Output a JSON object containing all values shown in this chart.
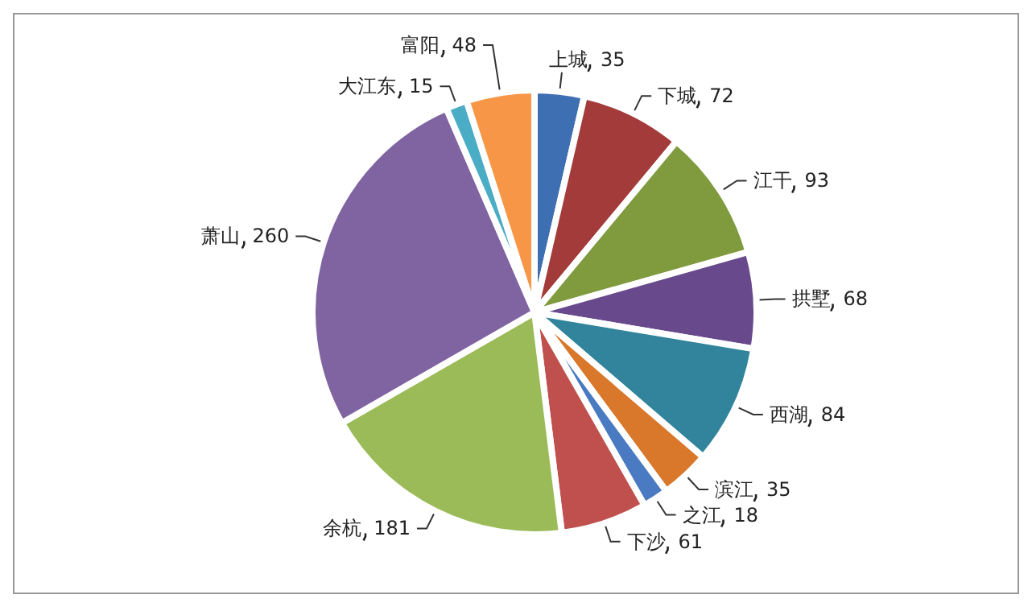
{
  "chart_data": {
    "type": "pie",
    "categories": [
      "上城",
      "下城",
      "江干",
      "拱墅",
      "西湖",
      "滨江",
      "之江",
      "下沙",
      "余杭",
      "萧山",
      "大江东",
      "富阳"
    ],
    "values": [
      35,
      72,
      93,
      68,
      84,
      35,
      18,
      61,
      181,
      260,
      15,
      48
    ],
    "colors": [
      "#3e6fb2",
      "#a33b3a",
      "#7f9b3e",
      "#684a8c",
      "#31849b",
      "#d9772b",
      "#4a7bc2",
      "#c0504d",
      "#9bbb59",
      "#8064a2",
      "#4bacc6",
      "#f79646"
    ],
    "data_labels": true,
    "legend": false
  }
}
